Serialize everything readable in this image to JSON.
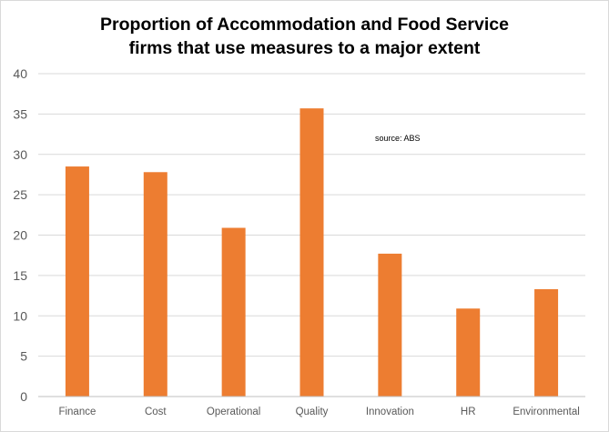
{
  "chart_data": {
    "type": "bar",
    "title_line1": "Proportion of Accommodation and Food Service",
    "title_line2": "firms that use measures to a major extent",
    "categories": [
      "Finance",
      "Cost",
      "Operational",
      "Quality",
      "Innovation",
      "HR",
      "Environmental"
    ],
    "values": [
      28.5,
      27.8,
      20.9,
      35.7,
      17.7,
      10.9,
      13.3
    ],
    "xlabel": "",
    "ylabel": "",
    "ylim": [
      0,
      40
    ],
    "yticks": [
      0,
      5,
      10,
      15,
      20,
      25,
      30,
      35,
      40
    ],
    "grid": true,
    "annotation": "source: ABS",
    "bar_color": "#ED7D31",
    "grid_color": "#d9d9d9",
    "axis_color": "#bfbfbf"
  }
}
